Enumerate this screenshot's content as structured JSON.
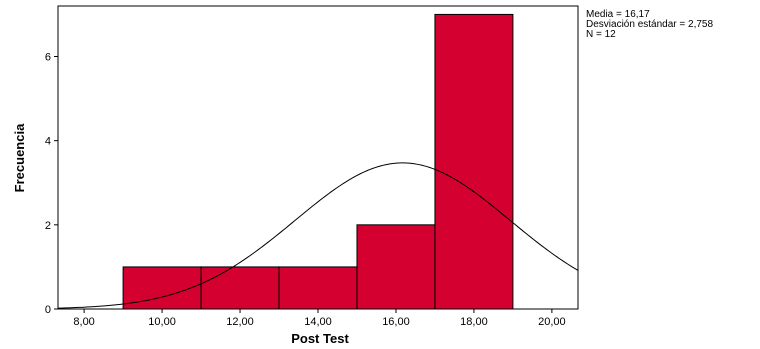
{
  "chart_data": {
    "type": "bar",
    "subtype": "histogram",
    "xlabel": "Post Test",
    "ylabel": "Frecuencia",
    "xlim": [
      7.33,
      20.67
    ],
    "ylim": [
      0,
      7.2
    ],
    "x_ticks": [
      "8,00",
      "10,00",
      "12,00",
      "14,00",
      "16,00",
      "18,00",
      "20,00"
    ],
    "x_tick_values": [
      8,
      10,
      12,
      14,
      16,
      18,
      20
    ],
    "y_ticks": [
      "0",
      "2",
      "4",
      "6"
    ],
    "y_tick_values": [
      0,
      2,
      4,
      6
    ],
    "bins": [
      {
        "start": 9,
        "end": 11,
        "count": 1
      },
      {
        "start": 11,
        "end": 13,
        "count": 1
      },
      {
        "start": 13,
        "end": 15,
        "count": 1
      },
      {
        "start": 15,
        "end": 17,
        "count": 2
      },
      {
        "start": 17,
        "end": 19,
        "count": 7
      }
    ],
    "bar_color": "#d4002f",
    "normal_curve": {
      "mean": 16.17,
      "sd": 2.758,
      "n": 12,
      "bin_width": 2
    },
    "stats": {
      "mean_label": "Media = 16,17",
      "sd_label": "Desviación estándar = 2,758",
      "n_label": "N = 12"
    },
    "grid": false,
    "legend": "right"
  }
}
